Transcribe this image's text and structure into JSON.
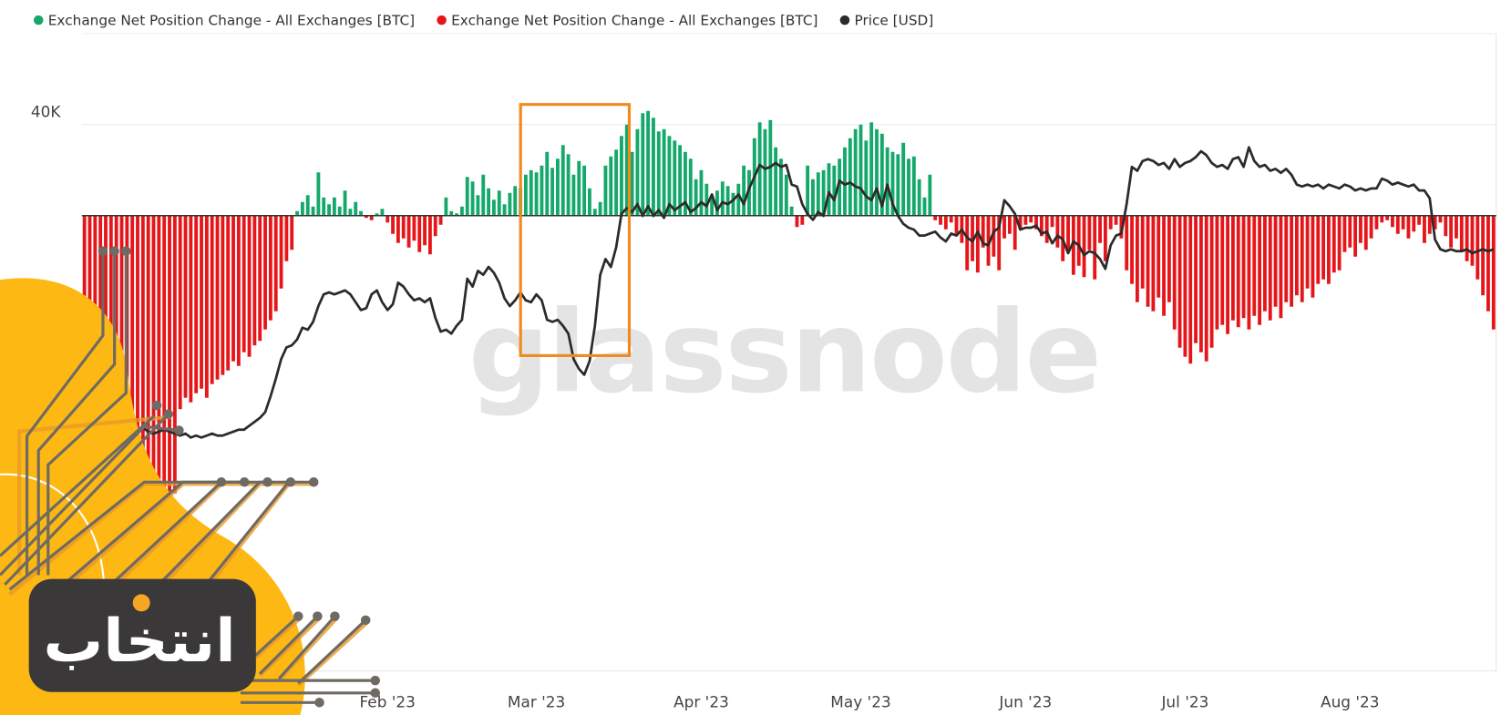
{
  "chart_data": {
    "type": "bar",
    "watermark": "glassnode",
    "logo_text": "انتخاب",
    "ylim": [
      -200000,
      80000
    ],
    "y2lim": [
      4600,
      37100
    ],
    "yticks": [
      {
        "value": 40000,
        "label": "40K"
      }
    ],
    "grid": true,
    "legend": "top-left",
    "categories": [
      null,
      null,
      null,
      null,
      null,
      null,
      null,
      null,
      null,
      null,
      null,
      null,
      null,
      null,
      null,
      null,
      null,
      null,
      null,
      null,
      null,
      null,
      null,
      null,
      null,
      null,
      null,
      null,
      null,
      null,
      null,
      null,
      null,
      null,
      null,
      null,
      null,
      null,
      null,
      null,
      null,
      null,
      null,
      null,
      null,
      null,
      null,
      null,
      null,
      null,
      null,
      null,
      null,
      null,
      null,
      null,
      null,
      "Feb '23",
      null,
      null,
      null,
      null,
      null,
      null,
      null,
      null,
      null,
      null,
      null,
      null,
      null,
      null,
      null,
      null,
      null,
      null,
      null,
      null,
      null,
      null,
      null,
      null,
      null,
      null,
      null,
      "Mar '23",
      null,
      null,
      null,
      null,
      null,
      null,
      null,
      null,
      null,
      null,
      null,
      null,
      null,
      null,
      null,
      null,
      null,
      null,
      null,
      null,
      null,
      null,
      null,
      null,
      null,
      null,
      null,
      null,
      null,
      null,
      "Apr '23",
      null,
      null,
      null,
      null,
      null,
      null,
      null,
      null,
      null,
      null,
      null,
      null,
      null,
      null,
      null,
      null,
      null,
      null,
      null,
      null,
      null,
      null,
      null,
      null,
      null,
      null,
      null,
      null,
      null,
      "May '23",
      null,
      null,
      null,
      null,
      null,
      null,
      null,
      null,
      null,
      null,
      null,
      null,
      null,
      null,
      null,
      null,
      null,
      null,
      null,
      null,
      null,
      null,
      null,
      null,
      null,
      null,
      null,
      null,
      null,
      null,
      "Jun '23",
      null,
      null,
      null,
      null,
      null,
      null,
      null,
      null,
      null,
      null,
      null,
      null,
      null,
      null,
      null,
      null,
      null,
      null,
      null,
      null,
      null,
      null,
      null,
      null,
      null,
      null,
      null,
      null,
      null,
      "Jul '23",
      null,
      null,
      null,
      null,
      null,
      null,
      null,
      null,
      null,
      null,
      null,
      null,
      null,
      null,
      null,
      null,
      null,
      null,
      null,
      null,
      null,
      null,
      null,
      null,
      null,
      null,
      null,
      null,
      null,
      null,
      "Aug '23",
      null,
      null,
      null,
      null,
      null,
      null,
      null,
      null,
      null,
      null,
      null,
      null,
      null,
      null,
      null,
      null,
      null,
      null,
      null,
      null,
      null,
      null,
      null,
      null,
      null,
      null,
      null
    ],
    "series": [
      {
        "name": "Exchange Net Position Change - All Exchanges [BTC]",
        "color": "#14a86b",
        "type": "bar",
        "values": [
          null,
          null,
          null,
          null,
          null,
          null,
          null,
          null,
          null,
          null,
          null,
          null,
          null,
          null,
          null,
          null,
          null,
          null,
          null,
          null,
          null,
          null,
          null,
          null,
          null,
          null,
          null,
          null,
          null,
          null,
          null,
          null,
          null,
          null,
          null,
          null,
          null,
          null,
          null,
          null,
          2000,
          6000,
          9000,
          4000,
          19000,
          8000,
          5000,
          8000,
          4000,
          11000,
          3000,
          6000,
          2000,
          null,
          null,
          1000,
          3000,
          null,
          null,
          null,
          null,
          null,
          null,
          null,
          null,
          null,
          null,
          null,
          8000,
          2000,
          1000,
          4000,
          17000,
          15000,
          9000,
          18000,
          12000,
          7000,
          11000,
          5000,
          10000,
          13000,
          12000,
          18000,
          20000,
          19000,
          22000,
          28000,
          21000,
          25000,
          31000,
          27000,
          18000,
          24000,
          22000,
          12000,
          3000,
          6000,
          22000,
          26000,
          29000,
          35000,
          40000,
          28000,
          38000,
          45000,
          46000,
          43000,
          37000,
          38000,
          35000,
          33000,
          31000,
          28000,
          25000,
          16000,
          20000,
          14000,
          9000,
          11000,
          15000,
          13000,
          10000,
          14000,
          22000,
          20000,
          34000,
          41000,
          38000,
          42000,
          30000,
          25000,
          18000,
          4000,
          null,
          null,
          22000,
          16000,
          19000,
          20000,
          23000,
          22000,
          25000,
          30000,
          34000,
          38000,
          40000,
          33000,
          41000,
          38000,
          36000,
          30000,
          28000,
          27000,
          32000,
          25000,
          26000,
          16000,
          8000,
          18000,
          null,
          null,
          null,
          null,
          null,
          null,
          null,
          null,
          null,
          null,
          null,
          null,
          null,
          null,
          null,
          null,
          null,
          null,
          null,
          null,
          null,
          null,
          null,
          null,
          null,
          null,
          null,
          null,
          null,
          null,
          null,
          null,
          null,
          null,
          null,
          null,
          null,
          null,
          null,
          null,
          null,
          null,
          null,
          null,
          null,
          null,
          null,
          null,
          null,
          null,
          null,
          null,
          null,
          null,
          null,
          null,
          null,
          null,
          null,
          null,
          null,
          null,
          null,
          null,
          null,
          null,
          null,
          null,
          null,
          null,
          null,
          null,
          null,
          null,
          null,
          null,
          null,
          null,
          null,
          null,
          null,
          null,
          null,
          null,
          null,
          null,
          null,
          null,
          null,
          null,
          null,
          null,
          null,
          null,
          null,
          null,
          null,
          null,
          null,
          null,
          null,
          null,
          null,
          null,
          null,
          null
        ]
      },
      {
        "name": "Exchange Net Position Change - All Exchanges [BTC]",
        "color": "#e5161a",
        "type": "bar",
        "values": [
          -110000,
          -118000,
          -112000,
          -120000,
          -115000,
          -108000,
          -122000,
          -117000,
          -110000,
          -119000,
          -121000,
          -125000,
          -118000,
          -123000,
          -126000,
          -120000,
          -124000,
          -122000,
          -85000,
          -80000,
          -82000,
          -78000,
          -76000,
          -80000,
          -74000,
          -72000,
          -70000,
          -68000,
          -64000,
          -66000,
          -60000,
          -62000,
          -57000,
          -55000,
          -50000,
          -46000,
          -42000,
          -32000,
          -20000,
          -15000,
          null,
          null,
          null,
          null,
          null,
          null,
          null,
          null,
          null,
          null,
          null,
          null,
          null,
          -1000,
          -2000,
          null,
          null,
          -3000,
          -8000,
          -12000,
          -10000,
          -14000,
          -11000,
          -16000,
          -13000,
          -17000,
          -9000,
          -4000,
          null,
          null,
          null,
          null,
          null,
          null,
          null,
          null,
          null,
          null,
          null,
          null,
          null,
          null,
          null,
          null,
          null,
          null,
          null,
          null,
          null,
          null,
          null,
          null,
          null,
          null,
          null,
          null,
          null,
          null,
          null,
          null,
          null,
          null,
          null,
          null,
          null,
          null,
          null,
          null,
          null,
          null,
          null,
          null,
          null,
          null,
          null,
          null,
          null,
          null,
          null,
          null,
          null,
          null,
          null,
          null,
          null,
          null,
          null,
          null,
          null,
          null,
          null,
          null,
          null,
          null,
          -5000,
          -4000,
          null,
          null,
          null,
          null,
          null,
          null,
          null,
          null,
          null,
          null,
          null,
          null,
          null,
          null,
          null,
          null,
          null,
          null,
          null,
          null,
          null,
          null,
          null,
          null,
          -2000,
          -4000,
          -6000,
          -3000,
          -8000,
          -12000,
          -24000,
          -20000,
          -25000,
          -14000,
          -22000,
          -18000,
          -24000,
          -10000,
          -8000,
          -15000,
          -6000,
          -4000,
          -3000,
          -6000,
          -9000,
          -12000,
          -5000,
          -14000,
          -20000,
          -16000,
          -26000,
          -22000,
          -27000,
          -15000,
          -28000,
          -12000,
          -20000,
          -6000,
          -4000,
          -10000,
          -24000,
          -30000,
          -38000,
          -32000,
          -40000,
          -42000,
          -36000,
          -44000,
          -38000,
          -50000,
          -58000,
          -62000,
          -65000,
          -56000,
          -60000,
          -64000,
          -58000,
          -50000,
          -48000,
          -52000,
          -46000,
          -49000,
          -45000,
          -50000,
          -44000,
          -48000,
          -42000,
          -46000,
          -40000,
          -45000,
          -38000,
          -40000,
          -35000,
          -38000,
          -32000,
          -36000,
          -30000,
          -28000,
          -30000,
          -25000,
          -24000,
          -16000,
          -14000,
          -18000,
          -12000,
          -15000,
          -10000,
          -6000,
          -3000,
          -2000,
          -5000,
          -8000,
          -6000,
          -10000,
          -7000,
          -4000,
          -12000,
          -8000,
          -6000,
          -3000,
          -9000,
          -14000,
          -10000,
          -16000,
          -20000,
          -22000,
          -28000,
          -35000,
          -42000,
          -50000
        ]
      },
      {
        "name": "Price [USD]",
        "color": "#2b2b2b",
        "type": "line",
        "axis": "y2",
        "values": [
          17100,
          17000,
          17200,
          17100,
          16900,
          17300,
          17800,
          17400,
          17000,
          16800,
          16900,
          17000,
          16800,
          16700,
          16800,
          16900,
          16800,
          16700,
          16600,
          16700,
          16500,
          16600,
          16500,
          16600,
          16700,
          16600,
          16600,
          16700,
          16800,
          16900,
          16900,
          17100,
          17300,
          17500,
          17800,
          18600,
          19500,
          20500,
          21100,
          21200,
          21500,
          22100,
          22000,
          22400,
          23200,
          23800,
          23900,
          23800,
          23900,
          24000,
          23800,
          23400,
          23000,
          23100,
          23800,
          24000,
          23400,
          23000,
          23300,
          24400,
          24200,
          23800,
          23500,
          23600,
          23400,
          23600,
          22600,
          21900,
          22000,
          21800,
          22200,
          22500,
          24600,
          24200,
          25000,
          24800,
          25200,
          24900,
          24400,
          23600,
          23200,
          23500,
          23900,
          23500,
          23400,
          23800,
          23500,
          22500,
          22400,
          22500,
          22200,
          21800,
          20500,
          20000,
          19700,
          20400,
          22200,
          24800,
          25600,
          25200,
          26200,
          27900,
          28200,
          28000,
          28400,
          27800,
          28300,
          27800,
          28100,
          27700,
          28400,
          28100,
          28300,
          28500,
          28000,
          28200,
          28500,
          28300,
          28900,
          28100,
          28500,
          28400,
          28600,
          28900,
          28400,
          29200,
          29800,
          30400,
          30200,
          30300,
          30500,
          30300,
          30400,
          29400,
          29300,
          28400,
          27900,
          27600,
          28000,
          27800,
          29000,
          28600,
          29600,
          29400,
          29500,
          29300,
          29200,
          28800,
          28600,
          29200,
          28300,
          29400,
          28400,
          27800,
          27400,
          27200,
          27100,
          26800,
          26800,
          26900,
          27000,
          26700,
          26500,
          26900,
          26800,
          27100,
          26700,
          26500,
          27000,
          26400,
          26300,
          27000,
          27200,
          28600,
          28300,
          27900,
          27100,
          27200,
          27200,
          27300,
          26900,
          27000,
          26400,
          26800,
          26600,
          25900,
          26500,
          26300,
          25800,
          26000,
          25900,
          25600,
          25100,
          26300,
          26800,
          26900,
          28400,
          30300,
          30100,
          30600,
          30700,
          30600,
          30400,
          30500,
          30200,
          30700,
          30300,
          30500,
          30600,
          30800,
          31100,
          30900,
          30500,
          30300,
          30400,
          30200,
          30700,
          30800,
          30300,
          31300,
          30600,
          30300,
          30400,
          30100,
          30200,
          30000,
          30200,
          29900,
          29400,
          29300,
          29400,
          29300,
          29400,
          29200,
          29400,
          29300,
          29200,
          29400,
          29300,
          29100,
          29200,
          29100,
          29200,
          29200,
          29700,
          29600,
          29400,
          29500,
          29400,
          29300,
          29400,
          29100,
          29100,
          28700,
          26600,
          26100,
          26000,
          26100,
          26000,
          26000,
          26100,
          25900,
          26000,
          26100,
          26000,
          26100
        ]
      }
    ]
  }
}
